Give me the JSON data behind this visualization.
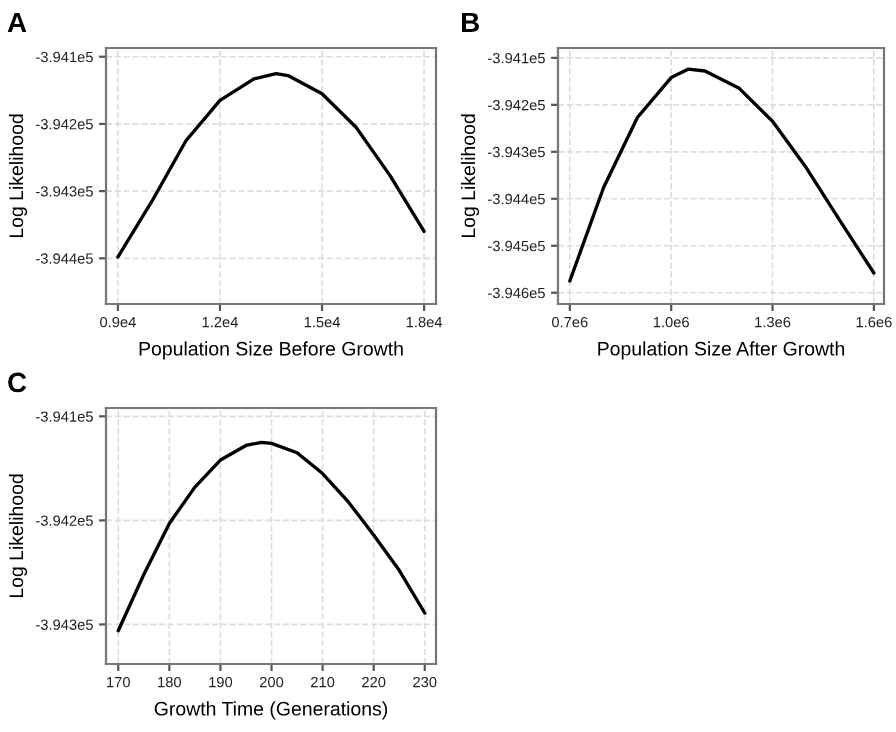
{
  "chart_data": [
    {
      "type": "line",
      "title": "A",
      "xlabel": "Population Size Before Growth",
      "ylabel": "Log Likelihood",
      "grid": true,
      "legend": false,
      "marker": "none",
      "line_style": "solid",
      "xlim": [
        8650,
        18350
      ],
      "ylim": [
        -394468,
        -394087
      ],
      "xticks": [
        {
          "value": 9000,
          "label": "0.9e4"
        },
        {
          "value": 12000,
          "label": "1.2e4"
        },
        {
          "value": 15000,
          "label": "1.5e4"
        },
        {
          "value": 18000,
          "label": "1.8e4"
        }
      ],
      "yticks": [
        {
          "value": -394400,
          "label": "-3.944e5"
        },
        {
          "value": -394300,
          "label": "-3.943e5"
        },
        {
          "value": -394200,
          "label": "-3.942e5"
        },
        {
          "value": -394100,
          "label": "-3.941e5"
        }
      ],
      "series": [
        {
          "color": "#000000",
          "x": [
            9000,
            10000,
            11000,
            12000,
            13000,
            13650,
            14000,
            15000,
            16000,
            17000,
            18000
          ],
          "values": [
            -394398,
            -394315,
            -394225,
            -394165,
            -394133,
            -394125,
            -394128,
            -394155,
            -394205,
            -394277,
            -394360
          ]
        }
      ]
    },
    {
      "type": "line",
      "title": "B",
      "xlabel": "Population Size After Growth",
      "ylabel": "Log Likelihood",
      "grid": true,
      "legend": false,
      "marker": "none",
      "line_style": "solid",
      "xlim": [
        665000,
        1630000
      ],
      "ylim": [
        -394624,
        -394079
      ],
      "xticks": [
        {
          "value": 700000,
          "label": "0.7e6"
        },
        {
          "value": 1000000,
          "label": "1.0e6"
        },
        {
          "value": 1300000,
          "label": "1.3e6"
        },
        {
          "value": 1600000,
          "label": "1.6e6"
        }
      ],
      "yticks": [
        {
          "value": -394600,
          "label": "-3.946e5"
        },
        {
          "value": -394500,
          "label": "-3.945e5"
        },
        {
          "value": -394400,
          "label": "-3.944e5"
        },
        {
          "value": -394300,
          "label": "-3.943e5"
        },
        {
          "value": -394200,
          "label": "-3.942e5"
        },
        {
          "value": -394100,
          "label": "-3.941e5"
        }
      ],
      "series": [
        {
          "color": "#000000",
          "x": [
            700000,
            800000,
            900000,
            1000000,
            1050000,
            1100000,
            1200000,
            1300000,
            1400000,
            1500000,
            1600000
          ],
          "values": [
            -394575,
            -394376,
            -394227,
            -394142,
            -394124,
            -394128,
            -394164,
            -394235,
            -394334,
            -394447,
            -394558
          ]
        }
      ]
    },
    {
      "type": "line",
      "title": "C",
      "xlabel": "Growth Time (Generations)",
      "ylabel": "Log Likelihood",
      "grid": true,
      "legend": false,
      "marker": "none",
      "line_style": "solid",
      "xlim": [
        167.6,
        232.2
      ],
      "ylim": [
        -394338,
        -394092
      ],
      "xticks": [
        170,
        180,
        190,
        200,
        210,
        220,
        230
      ],
      "yticks": [
        {
          "value": -394300,
          "label": "-3.943e5"
        },
        {
          "value": -394200,
          "label": "-3.942e5"
        },
        {
          "value": -394100,
          "label": "-3.941e5"
        }
      ],
      "series": [
        {
          "color": "#000000",
          "x": [
            170,
            175,
            180,
            185,
            190,
            195,
            198,
            200,
            205,
            210,
            215,
            220,
            225,
            230
          ],
          "values": [
            -394306,
            -394252,
            -394203,
            -394168,
            -394142,
            -394128,
            -394125,
            -394126,
            -394135,
            -394155,
            -394182,
            -394214,
            -394248,
            -394289
          ]
        }
      ]
    }
  ]
}
